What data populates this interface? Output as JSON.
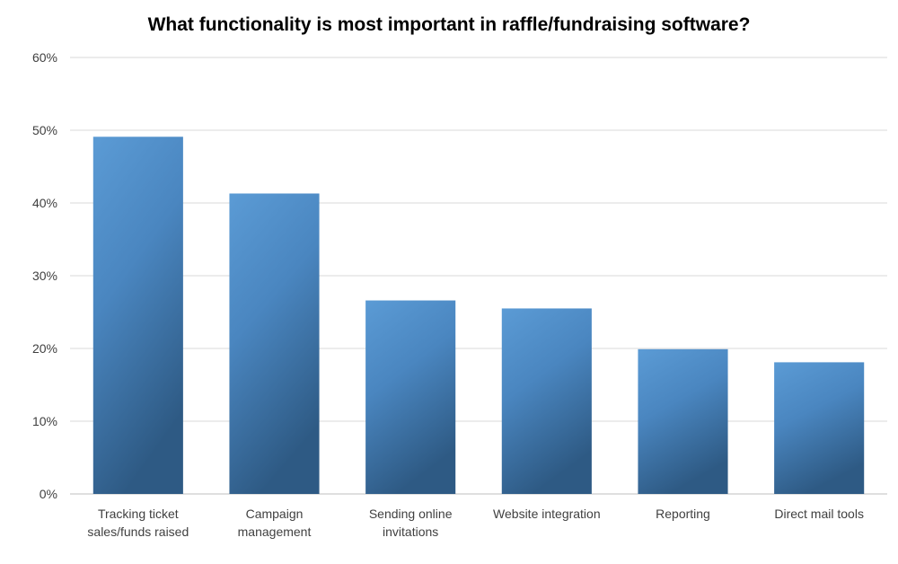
{
  "chart_data": {
    "type": "bar",
    "title": "What functionality is most important in raffle/fundraising software?",
    "categories": [
      [
        "Tracking ticket",
        "sales/funds raised"
      ],
      [
        "Campaign",
        "management"
      ],
      [
        "Sending online",
        "invitations"
      ],
      [
        "Website integration"
      ],
      [
        "Reporting"
      ],
      [
        "Direct mail tools"
      ]
    ],
    "values": [
      49.1,
      41.3,
      26.6,
      25.5,
      19.9,
      18.1
    ],
    "ylim": [
      0,
      60
    ],
    "yticks": [
      0,
      10,
      20,
      30,
      40,
      50,
      60
    ],
    "ytick_suffix": "%",
    "grid": true,
    "legend": "none",
    "colors": {
      "bar_top": "#5b9bd5",
      "bar_bottom": "#2e5a84",
      "grid": "#d9d9d9",
      "axis": "#bfbfbf"
    }
  }
}
